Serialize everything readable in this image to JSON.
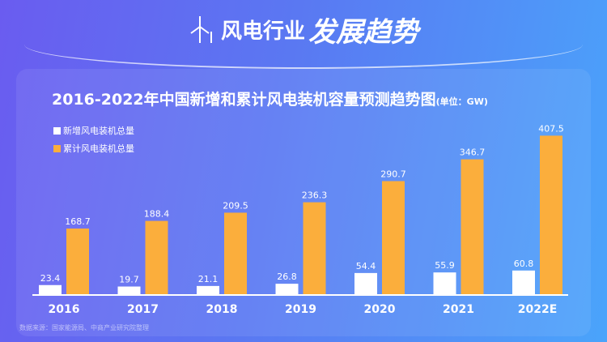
{
  "header": {
    "title_a": "风电行业",
    "title_b": "发展趋势",
    "icon": "wind-turbine-icon"
  },
  "source": "数据来源：国家能源局、中商产业研究院整理",
  "colors": {
    "new": "#ffffff",
    "cumulative": "#fbae3c"
  },
  "chart_data": {
    "type": "bar",
    "title": "2016-2022年中国新增和累计风电装机容量预测趋势图",
    "unit": "(单位：GW)",
    "categories": [
      "2016",
      "2017",
      "2018",
      "2019",
      "2020",
      "2021",
      "2022E"
    ],
    "series": [
      {
        "name": "新增风电装机总量",
        "values": [
          23.4,
          19.7,
          21.1,
          26.8,
          54.4,
          55.9,
          60.8
        ]
      },
      {
        "name": "累计风电装机总量",
        "values": [
          168.7,
          188.4,
          209.5,
          236.3,
          290.7,
          346.7,
          407.5
        ]
      }
    ],
    "legend": "top-left",
    "grid": false
  }
}
